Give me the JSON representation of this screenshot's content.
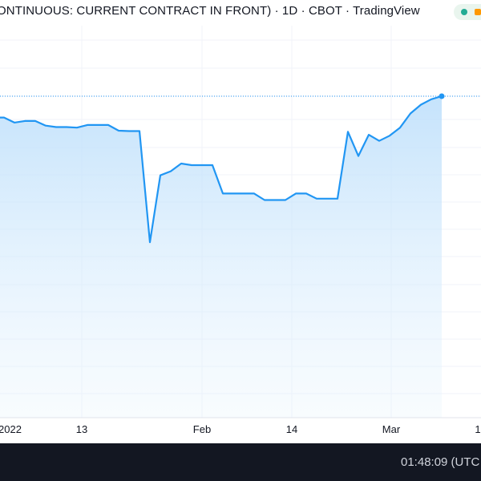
{
  "header": {
    "title": "ONTINUOUS: CURRENT CONTRACT IN FRONT) · 1D · CBOT · TradingView"
  },
  "status": {
    "dot_color": "#22ab94",
    "badge_color": "#ff9800"
  },
  "footer": {
    "clock": "01:48:09 (UTC"
  },
  "colors": {
    "line": "#2196f3",
    "fill_top": "#bbdefb",
    "grid": "#f0f3fa",
    "last_price_line": "#2196f3"
  },
  "chart_data": {
    "type": "area",
    "x_tick_labels": [
      "2022",
      "13",
      "Feb",
      "14",
      "Mar",
      "1"
    ],
    "x": [
      0,
      1,
      2,
      3,
      4,
      5,
      6,
      7,
      8,
      9,
      10,
      11,
      12,
      13,
      14,
      15,
      16,
      17,
      18,
      19,
      20,
      21,
      22,
      23,
      24,
      25,
      26,
      27,
      28,
      29,
      30,
      31,
      32,
      33,
      34,
      35,
      36,
      37,
      38,
      39,
      40,
      41,
      42,
      43
    ],
    "values": [
      0.895,
      0.895,
      0.87,
      0.878,
      0.878,
      0.855,
      0.848,
      0.848,
      0.845,
      0.858,
      0.858,
      0.858,
      0.83,
      0.828,
      0.828,
      0.28,
      0.61,
      0.63,
      0.668,
      0.66,
      0.66,
      0.66,
      0.52,
      0.52,
      0.52,
      0.52,
      0.488,
      0.488,
      0.488,
      0.52,
      0.52,
      0.495,
      0.495,
      0.495,
      0.825,
      0.705,
      0.81,
      0.78,
      0.805,
      0.845,
      0.915,
      0.958,
      0.985,
      1.0
    ],
    "grid": true,
    "last_value_marker": true
  }
}
